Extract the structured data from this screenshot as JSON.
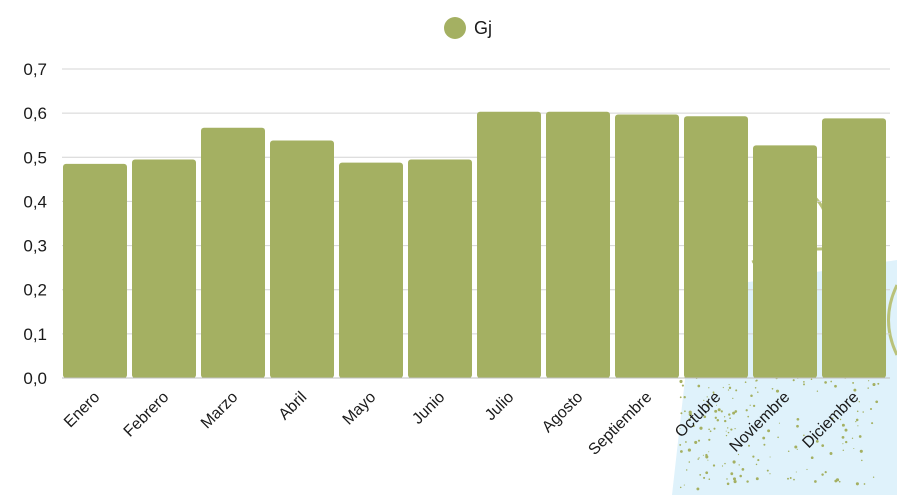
{
  "chart_data": {
    "type": "bar",
    "title": "",
    "xlabel": "",
    "ylabel": "",
    "categories": [
      "Enero",
      "Febrero",
      "Marzo",
      "Abril",
      "Mayo",
      "Junio",
      "Julio",
      "Agosto",
      "Septiembre",
      "Octubre",
      "Noviembre",
      "Diciembre"
    ],
    "series": [
      {
        "name": "Gj",
        "color": "#a4b062",
        "values": [
          0.485,
          0.495,
          0.567,
          0.538,
          0.488,
          0.495,
          0.603,
          0.603,
          0.597,
          0.593,
          0.527,
          0.588
        ]
      }
    ],
    "ylim": [
      0,
      0.7
    ],
    "yticks": [
      "0,0",
      "0,1",
      "0,2",
      "0,3",
      "0,4",
      "0,5",
      "0,6",
      "0,7"
    ],
    "grid": true,
    "legend_position": "top-center"
  },
  "colors": {
    "bar": "#a4b062",
    "grid": "#d4d4d4",
    "background_accent": "#dff2fb",
    "speckle": "#a4b062"
  }
}
